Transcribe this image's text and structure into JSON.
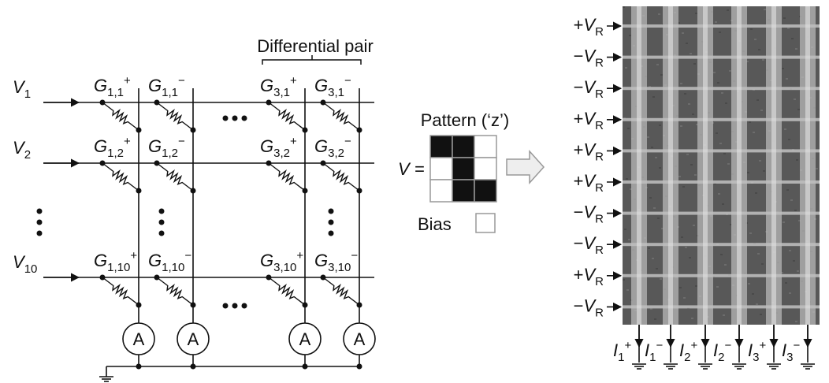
{
  "left": {
    "title": "Differential pair",
    "rows": [
      {
        "v": "V",
        "sub": "1"
      },
      {
        "v": "V",
        "sub": "2"
      },
      {
        "v": "V",
        "sub": "10"
      }
    ],
    "conductances": [
      [
        {
          "g": "G",
          "sub": "1,1",
          "sup": "+"
        },
        {
          "g": "G",
          "sub": "1,1",
          "sup": "−"
        },
        {
          "g": "G",
          "sub": "3,1",
          "sup": "+"
        },
        {
          "g": "G",
          "sub": "3,1",
          "sup": "−"
        }
      ],
      [
        {
          "g": "G",
          "sub": "1,2",
          "sup": "+"
        },
        {
          "g": "G",
          "sub": "1,2",
          "sup": "−"
        },
        {
          "g": "G",
          "sub": "3,2",
          "sup": "+"
        },
        {
          "g": "G",
          "sub": "3,2",
          "sup": "−"
        }
      ],
      [
        {
          "g": "G",
          "sub": "1,10",
          "sup": "+"
        },
        {
          "g": "G",
          "sub": "1,10",
          "sup": "−"
        },
        {
          "g": "G",
          "sub": "3,10",
          "sup": "+"
        },
        {
          "g": "G",
          "sub": "3,10",
          "sup": "−"
        }
      ]
    ],
    "ammeters": [
      "A",
      "A",
      "A",
      "A"
    ]
  },
  "middle": {
    "title": "Pattern (‘z’)",
    "v_label": "V =",
    "pattern": [
      [
        1,
        1,
        0
      ],
      [
        0,
        1,
        0
      ],
      [
        0,
        1,
        1
      ]
    ],
    "bias_label": "Bias",
    "bias": 0
  },
  "right": {
    "voltages": [
      {
        "sign": "+",
        "v": "V",
        "sub": "R"
      },
      {
        "sign": "−",
        "v": "V",
        "sub": "R"
      },
      {
        "sign": "−",
        "v": "V",
        "sub": "R"
      },
      {
        "sign": "+",
        "v": "V",
        "sub": "R"
      },
      {
        "sign": "+",
        "v": "V",
        "sub": "R"
      },
      {
        "sign": "+",
        "v": "V",
        "sub": "R"
      },
      {
        "sign": "−",
        "v": "V",
        "sub": "R"
      },
      {
        "sign": "−",
        "v": "V",
        "sub": "R"
      },
      {
        "sign": "+",
        "v": "V",
        "sub": "R"
      },
      {
        "sign": "−",
        "v": "V",
        "sub": "R"
      }
    ],
    "currents": [
      {
        "i": "I",
        "sub": "1",
        "sup": "+"
      },
      {
        "i": "I",
        "sub": "1",
        "sup": "−"
      },
      {
        "i": "I",
        "sub": "2",
        "sup": "+"
      },
      {
        "i": "I",
        "sub": "2",
        "sup": "−"
      },
      {
        "i": "I",
        "sub": "3",
        "sup": "+"
      },
      {
        "i": "I",
        "sub": "3",
        "sup": "−"
      }
    ]
  }
}
